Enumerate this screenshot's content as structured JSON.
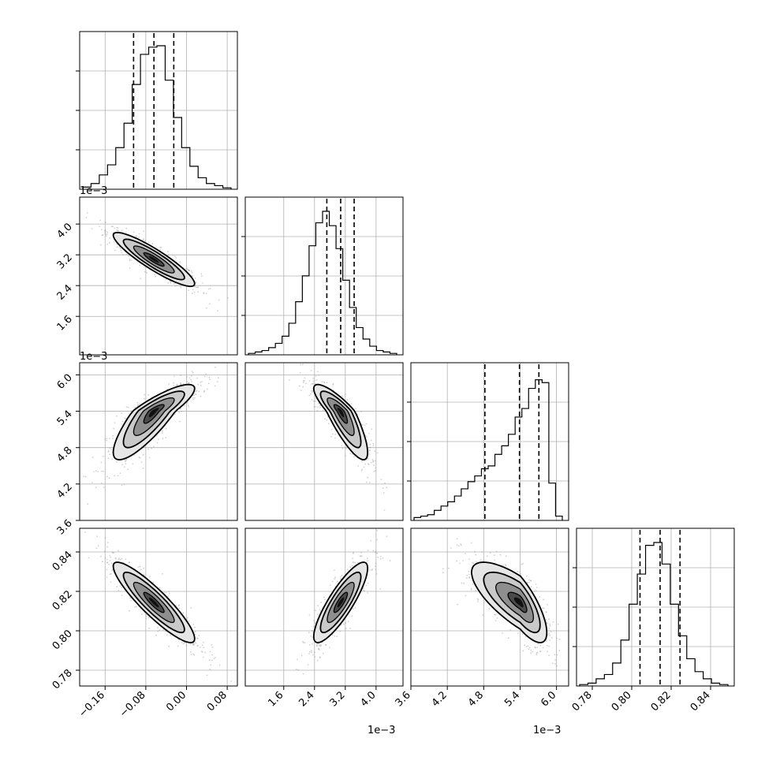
{
  "figure": {
    "type": "corner",
    "tick_labels": {
      "p0": [
        "−0.16",
        "−0.08",
        "0.00",
        "0.08"
      ],
      "p1": [
        "1.6",
        "2.4",
        "3.2",
        "4.0"
      ],
      "p2": [
        "3.6",
        "4.2",
        "4.8",
        "5.4",
        "6.0"
      ],
      "p3": [
        "0.78",
        "0.80",
        "0.82",
        "0.84"
      ]
    },
    "offset_labels": {
      "p1_x": "1e−3",
      "p2_x": "1e−3",
      "p1_y": "1e−3",
      "p2_y": "1e−3"
    },
    "colors": {
      "contour": "#000000",
      "scatter": "#9a9a9a",
      "grid": "#b0b0b0"
    }
  },
  "chart_data": {
    "type": "corner",
    "parameters": [
      {
        "range": [
          -0.21,
          0.1
        ],
        "ticks": [
          -0.16,
          -0.08,
          0.0,
          0.08
        ],
        "quantiles": [
          -0.104,
          -0.064,
          -0.025
        ],
        "mean": -0.064,
        "sd": 0.04,
        "histogram": [
          0.015,
          0.04,
          0.1,
          0.17,
          0.29,
          0.46,
          0.73,
          0.94,
          0.99,
          1.0,
          0.76,
          0.5,
          0.29,
          0.16,
          0.08,
          0.04,
          0.025,
          0.01
        ]
      },
      {
        "range": [
          0.0006,
          0.0047
        ],
        "ticks": [
          0.0016,
          0.0024,
          0.0032,
          0.004
        ],
        "offset": "1e-3",
        "quantiles": [
          0.00272,
          0.00308,
          0.00343
        ],
        "mean": 0.00308,
        "sd": 0.00035,
        "histogram": [
          0.01,
          0.02,
          0.03,
          0.05,
          0.08,
          0.13,
          0.22,
          0.37,
          0.55,
          0.76,
          0.92,
          1.0,
          0.9,
          0.74,
          0.52,
          0.33,
          0.19,
          0.11,
          0.06,
          0.03,
          0.02,
          0.01
        ]
      },
      {
        "range": [
          0.0036,
          0.0062
        ],
        "ticks": [
          0.0036,
          0.0042,
          0.0048,
          0.0054,
          0.006
        ],
        "offset": "1e-3",
        "quantiles": [
          0.00482,
          0.00539,
          0.00571
        ],
        "mean": 0.0054,
        "sd": 0.0004,
        "skew": -2,
        "histogram": [
          0.02,
          0.03,
          0.04,
          0.07,
          0.1,
          0.13,
          0.17,
          0.22,
          0.27,
          0.31,
          0.36,
          0.38,
          0.46,
          0.52,
          0.6,
          0.72,
          0.78,
          0.92,
          0.98,
          0.96,
          0.26,
          0.03
        ]
      },
      {
        "range": [
          0.772,
          0.852
        ],
        "ticks": [
          0.78,
          0.8,
          0.82,
          0.84
        ],
        "quantiles": [
          0.8042,
          0.8144,
          0.8245
        ],
        "mean": 0.8144,
        "sd": 0.0102,
        "histogram": [
          0.01,
          0.02,
          0.05,
          0.08,
          0.16,
          0.32,
          0.57,
          0.78,
          0.98,
          1.0,
          0.85,
          0.57,
          0.35,
          0.19,
          0.1,
          0.05,
          0.02,
          0.01
        ]
      }
    ],
    "correlations": [
      [
        1,
        -0.9,
        0.85,
        -0.9
      ],
      [
        -0.9,
        1,
        -0.85,
        0.85
      ],
      [
        0.85,
        -0.85,
        1,
        -0.75
      ],
      [
        -0.9,
        0.85,
        -0.75,
        1
      ]
    ],
    "contour_levels_sigma": [
      0.5,
      1.0,
      1.5,
      2.0
    ],
    "grid": true
  }
}
